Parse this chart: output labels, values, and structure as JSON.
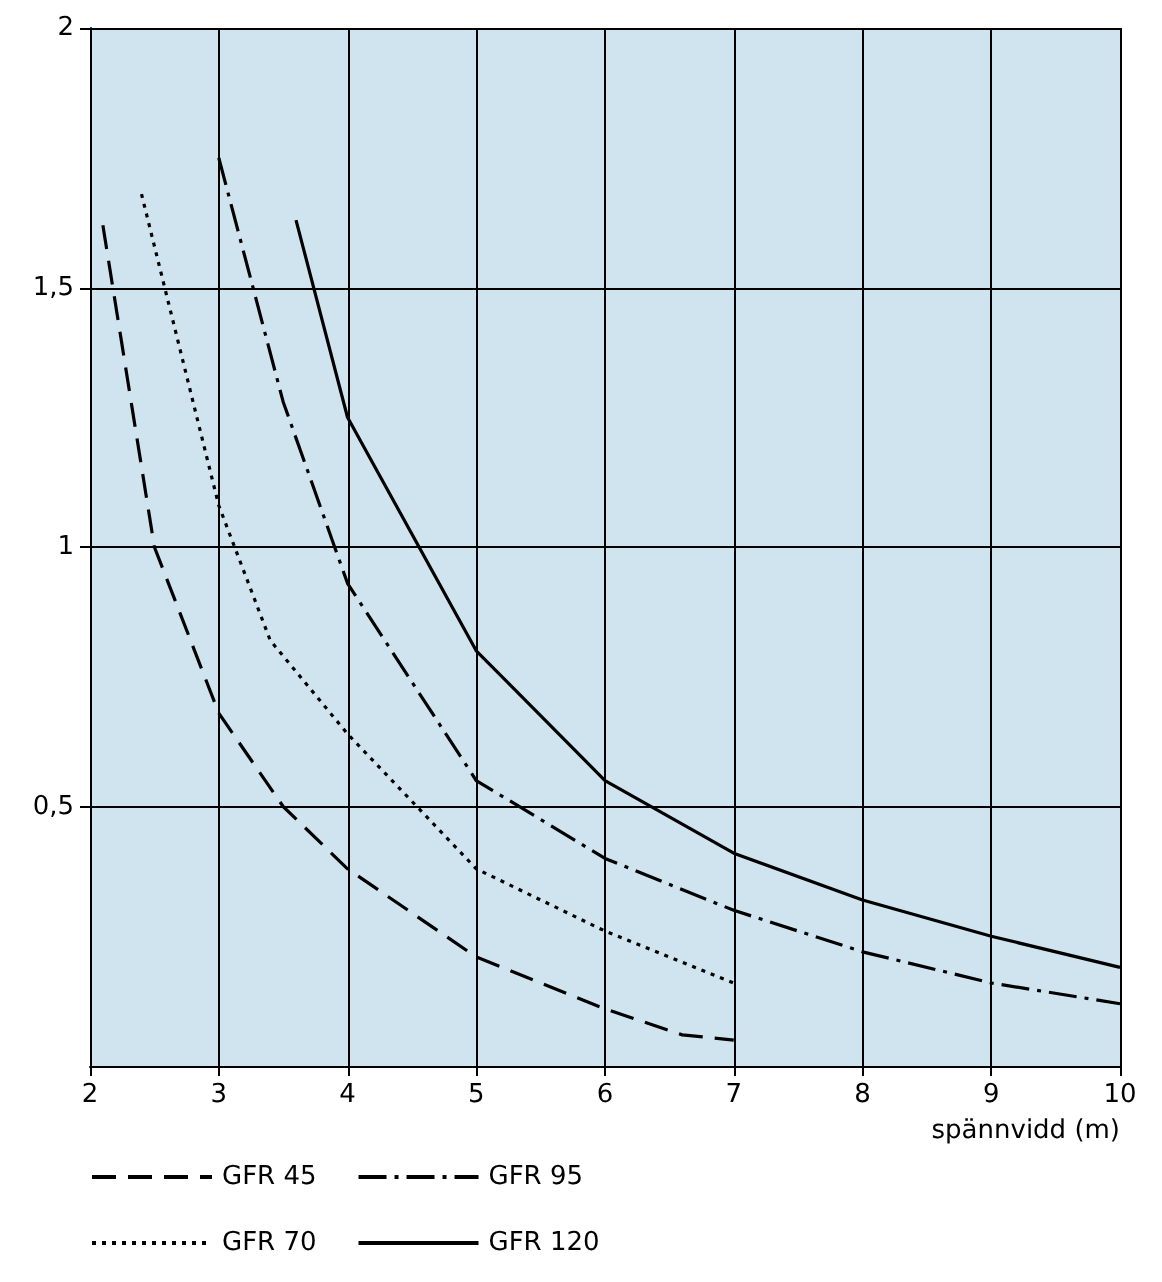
{
  "chart_data": {
    "type": "line",
    "xlabel": "spännvidd (m)",
    "xlim": [
      2,
      10
    ],
    "xticks": [
      2,
      3,
      4,
      5,
      6,
      7,
      8,
      9,
      10
    ],
    "ylim": [
      0,
      2
    ],
    "yticks": [
      {
        "value": 0.5,
        "label": "0,5"
      },
      1,
      {
        "value": 1.5,
        "label": "1,5"
      },
      2
    ],
    "grid": true,
    "legend": "bottom",
    "marker": "none",
    "series": [
      {
        "name": "GFR 45",
        "color": "#000000",
        "line_style": "dashed",
        "x": [
          2.1,
          2.5,
          3,
          3.5,
          4,
          5,
          6,
          6.6,
          7
        ],
        "values": [
          1.62,
          1.0,
          0.68,
          0.5,
          0.38,
          0.21,
          0.11,
          0.06,
          0.05
        ]
      },
      {
        "name": "GFR 95",
        "color": "#000000",
        "line_style": "dashdot",
        "x": [
          3,
          3.5,
          4,
          5,
          6,
          7,
          8,
          9,
          10
        ],
        "values": [
          1.75,
          1.28,
          0.93,
          0.55,
          0.4,
          0.3,
          0.22,
          0.16,
          0.12
        ]
      },
      {
        "name": "GFR 70",
        "color": "#000000",
        "line_style": "dotted",
        "x": [
          2.4,
          3,
          3.4,
          4,
          5,
          6,
          7
        ],
        "values": [
          1.68,
          1.08,
          0.82,
          0.64,
          0.38,
          0.26,
          0.16
        ]
      },
      {
        "name": "GFR 120",
        "color": "#000000",
        "line_style": "solid",
        "x": [
          3.6,
          4,
          5,
          6,
          7,
          8,
          9,
          10
        ],
        "values": [
          1.63,
          1.25,
          0.8,
          0.55,
          0.41,
          0.32,
          0.25,
          0.19
        ]
      }
    ]
  }
}
